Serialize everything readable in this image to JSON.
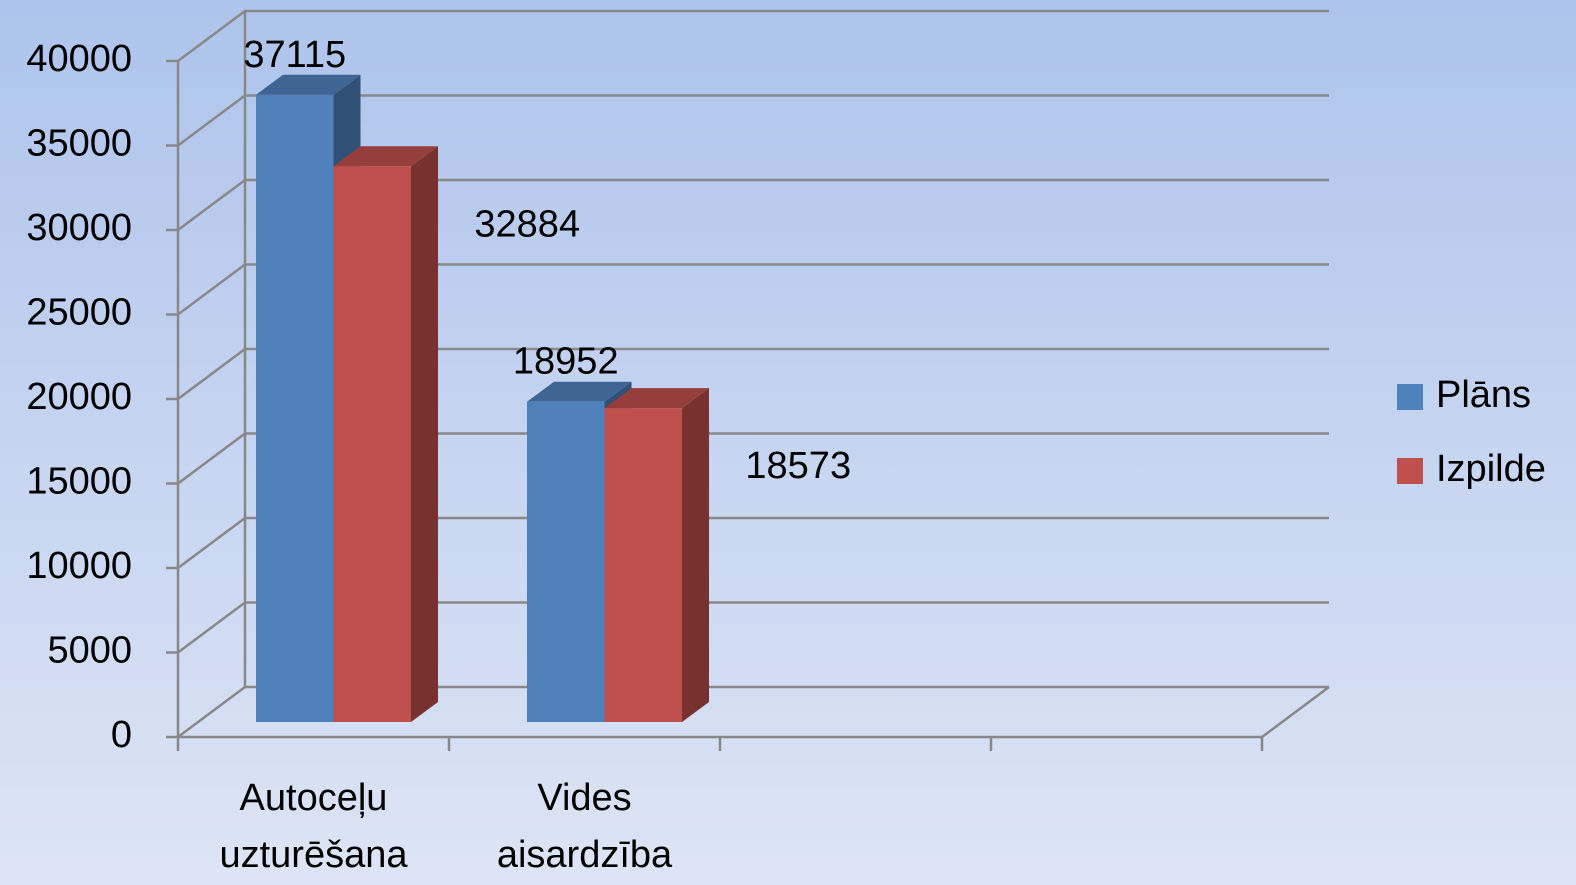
{
  "chart_data": {
    "type": "bar3d",
    "categories": [
      "Autoceļu uzturēšana",
      "Vides aisardzība",
      null,
      null
    ],
    "series": [
      {
        "name": "Plāns",
        "color": "#4f81bd",
        "values": [
          37115,
          18952,
          null,
          null
        ]
      },
      {
        "name": "Izpilde",
        "color": "#c0504d",
        "values": [
          32884,
          18573,
          null,
          null
        ]
      }
    ],
    "ylim": [
      0,
      40000
    ],
    "yticks": [
      0,
      5000,
      10000,
      15000,
      20000,
      25000,
      30000,
      35000,
      40000
    ],
    "grid": true,
    "legend": "right"
  }
}
